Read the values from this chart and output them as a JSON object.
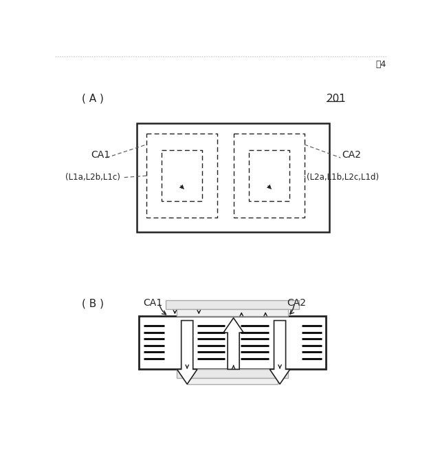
{
  "fig_label": "围4",
  "label_A": "( A )",
  "label_B": "( B )",
  "label_201": "201",
  "label_CA1_A": "CA1",
  "label_CA2_A": "CA2",
  "label_CA1_B": "CA1",
  "label_CA2_B": "CA2",
  "label_L1": "(L1a,L2b,L1c)",
  "label_L2": "(L2a,L1b,L2c,L1d)",
  "bg_color": "#ffffff",
  "line_color": "#222222",
  "dash_color": "#555555",
  "gray_color": "#aaaaaa"
}
